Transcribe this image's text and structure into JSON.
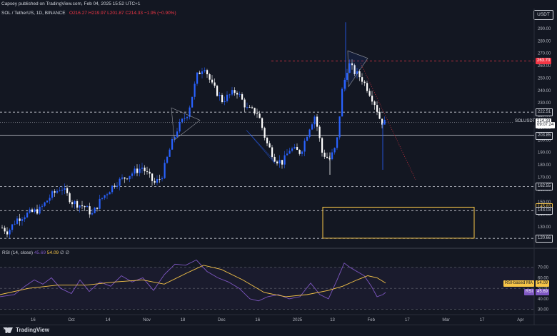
{
  "header": {
    "published": "Capsey published on TradingView.com, Feb 04, 2025 15:52 UTC+1",
    "symbol": "SOL / TetherUS, 1D, BINANCE",
    "ohlc": "O216.27 H219.97 L201.87 C214.33 −1.95 (−0.90%)",
    "currency": "USDT"
  },
  "price_axis": {
    "ticks": [
      "290.00",
      "280.00",
      "270.00",
      "260.00",
      "250.00",
      "240.00",
      "230.00",
      "220.00",
      "210.00",
      "200.00",
      "190.00",
      "180.00",
      "170.00",
      "160.00",
      "150.00",
      "140.00",
      "130.00",
      "120.00"
    ],
    "min": 115,
    "max": 298,
    "labels": [
      {
        "text": "263.70",
        "value": 263.7,
        "bg": "#f23645",
        "fg": "#ffffff"
      },
      {
        "text": "222.51",
        "value": 222.51,
        "bg": "#131722",
        "fg": "#d1d4dc",
        "border": "#d1d4dc"
      },
      {
        "text": "SOLUSDT",
        "value": 214.33,
        "bg": "#131722",
        "fg": "#d1d4dc",
        "left": true
      },
      {
        "text": "214.33",
        "value": 214.33,
        "bg": "#ffffff",
        "fg": "#131722"
      },
      {
        "text": "09:07:24",
        "value": 211.4,
        "bg": "#ffffff",
        "fg": "#131722"
      },
      {
        "text": "203.85",
        "value": 203.85,
        "bg": "#131722",
        "fg": "#d1d4dc",
        "border": "#d1d4dc"
      },
      {
        "text": "162.55",
        "value": 162.55,
        "bg": "#131722",
        "fg": "#d1d4dc",
        "border": "#d1d4dc"
      },
      {
        "text": "145.83",
        "value": 145.83,
        "bg": "#131722",
        "fg": "#f7c548",
        "border": "#f7c548"
      },
      {
        "text": "143.03",
        "value": 143.03,
        "bg": "#131722",
        "fg": "#d1d4dc",
        "border": "#d1d4dc"
      },
      {
        "text": "120.80",
        "value": 120.8,
        "bg": "#131722",
        "fg": "#f7c548",
        "border": "#f7c548"
      },
      {
        "text": "120.66",
        "value": 120.66,
        "bg": "#131722",
        "fg": "#d1d4dc",
        "border": "#d1d4dc"
      }
    ]
  },
  "time_axis": [
    "16",
    "Oct",
    "14",
    "Nov",
    "18",
    "Dec",
    "16",
    "2025",
    "13",
    "Feb",
    "17",
    "Mar",
    "17",
    "Apr"
  ],
  "levels": {
    "resistance_red": 263.7,
    "dashed": [
      222.51,
      162.55,
      143.03,
      120.66
    ],
    "solid": [
      203.85
    ]
  },
  "rsi": {
    "label": "RSI (14, close)",
    "value": "45.69",
    "ma_value": "54.09",
    "empty1": "∅",
    "empty2": "∅",
    "ticks": [
      "70.00",
      "60.00",
      "50.00",
      "40.00",
      "30.00"
    ],
    "ma_box": "RSI-based MA",
    "rsi_box": "RSI",
    "min": 27,
    "max": 80
  },
  "footer": {
    "brand": "TradingView"
  },
  "colors": {
    "bg": "#131722",
    "up": "#2962ff",
    "down": "#ffffff",
    "rsi": "#7e57c2",
    "rsi_ma": "#f7c548",
    "red": "#f23645",
    "yellow": "#f7c548"
  }
}
